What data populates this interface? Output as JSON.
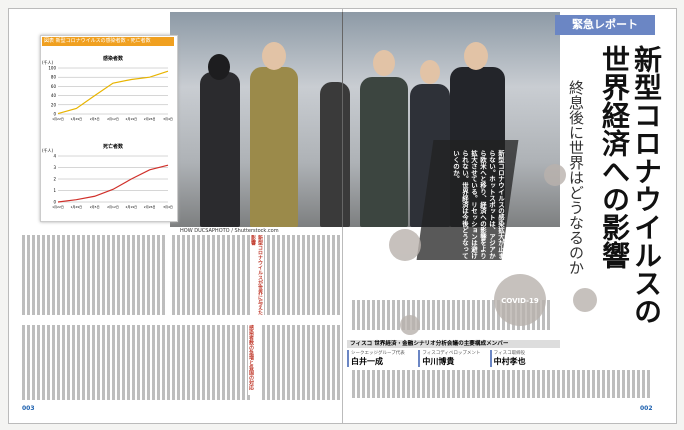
{
  "header": {
    "label": "緊急レポート"
  },
  "title": "新型コロナウイルスの世界経済への影響",
  "subtitle": "終息後に世界はどうなるのか",
  "lead": "新型コロナウイルスの感染拡大が止まらない。ホットスポットは、アジアから欧米へと移り、経済への影響をより拡大させている。リセッションは避けられない。世界経済は今後どうなっていくのか。",
  "photo_credit": "HOW DUCSAPHOTO / Shutterstock.com",
  "virus_label": "COVID-19",
  "figure": {
    "caption": "図表 新型コロナウイルスの感染者数・死亡者数",
    "charts": [
      {
        "type": "line",
        "title": "感染者数",
        "unit": "(千人)",
        "categories": [
          "1月22日",
          "1月29日",
          "2月5日",
          "2月12日",
          "2月19日",
          "2月26日",
          "3月4日"
        ],
        "values": [
          1,
          12,
          40,
          67,
          75,
          80,
          93
        ],
        "color": "#e8b400",
        "ylim": [
          0,
          100
        ],
        "yticks": [
          0,
          20,
          40,
          60,
          80,
          100
        ]
      },
      {
        "type": "line",
        "title": "死亡者数",
        "unit": "(千人)",
        "categories": [
          "1月22日",
          "1月29日",
          "2月5日",
          "2月12日",
          "2月19日",
          "2月26日",
          "3月4日"
        ],
        "values": [
          0,
          0.2,
          0.5,
          1.1,
          2,
          2.8,
          3.2
        ],
        "color": "#d0302a",
        "ylim": [
          0,
          4
        ],
        "yticks": [
          0,
          1,
          2,
          3,
          4
        ]
      }
    ]
  },
  "members": {
    "heading": "フィスコ 世界経済・金融シナリオ分析会議の主要構成メンバー",
    "people": [
      {
        "role": "シークエッジグループ代表",
        "name": "白井一成"
      },
      {
        "role": "フィスコディベロップメント",
        "name": "中川博貴"
      },
      {
        "role": "フィスコ取締役",
        "name": "中村孝也"
      }
    ]
  },
  "sidebar_headings": [
    "新型コロナウイルスが世界に与えた影響",
    "感染者数の急増と各国の対応"
  ],
  "pages": {
    "left": "003",
    "right": "002"
  }
}
